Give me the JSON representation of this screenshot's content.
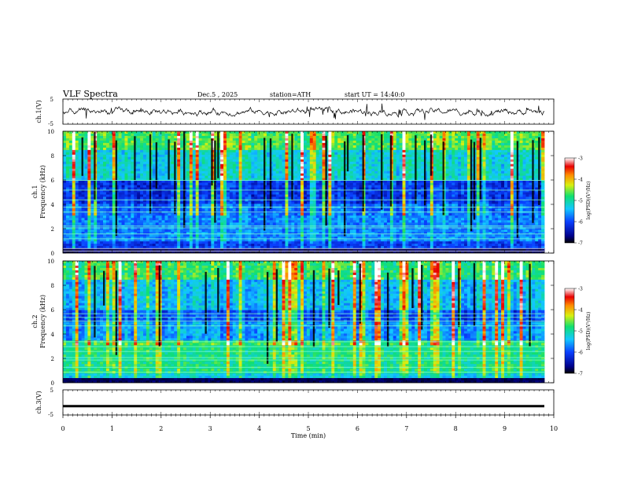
{
  "header": {
    "title": "VLF  Spectra",
    "date": "Dec.5  , 2025",
    "station": "station=ATH",
    "start_ut": "start  UT  =   14:40:0"
  },
  "colorbar": {
    "label": "log(PSD)(V²/Hz)",
    "ticks": [
      "-3",
      "-4",
      "-5",
      "-6",
      "-7"
    ]
  },
  "chart_data": [
    {
      "type": "line",
      "ylabel": "ch.1(V)",
      "ylim": [
        -5,
        5
      ],
      "yticks": [
        "5",
        "-5"
      ],
      "xlim": [
        0,
        10
      ],
      "description_series": [
        {
          "values": [
            -0.2,
            0.3,
            -0.5,
            0.1,
            0.6,
            -0.4,
            0.2,
            -0.1
          ]
        }
      ]
    },
    {
      "type": "heatmap",
      "ylabel": "ch.1\nFrequency (kHz)",
      "ylim": [
        0,
        10
      ],
      "yticks": [
        "0",
        "2",
        "4",
        "6",
        "8",
        "10"
      ],
      "xlim": [
        0,
        10
      ],
      "clim": [
        -7,
        -3
      ]
    },
    {
      "type": "heatmap",
      "ylabel": "ch.2\nFrequency (kHz)",
      "ylim": [
        0,
        10
      ],
      "yticks": [
        "0",
        "2",
        "4",
        "6",
        "8",
        "10"
      ],
      "xlim": [
        0,
        10
      ],
      "clim": [
        -7,
        -3
      ]
    },
    {
      "type": "line",
      "ylabel": "ch.3(V)",
      "ylim": [
        -5,
        5
      ],
      "yticks": [
        "5",
        "-5"
      ],
      "xlim": [
        0,
        10
      ],
      "series": [
        {
          "values": [
            -1.5,
            -1.5
          ]
        }
      ]
    }
  ],
  "x_axis": {
    "label": "Time  (min)",
    "ticks": [
      "0",
      "1",
      "2",
      "3",
      "4",
      "5",
      "6",
      "7",
      "8",
      "9",
      "10"
    ]
  }
}
